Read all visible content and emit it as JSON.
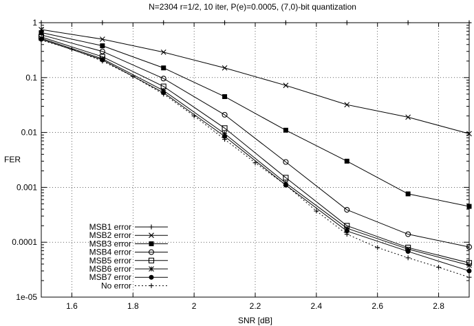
{
  "chart_data": {
    "type": "line",
    "title": "N=2304 r=1/2, 10 iter, P(e)=0.0005, (7,0)-bit quantization",
    "xlabel": "SNR [dB]",
    "ylabel": "FER",
    "xlim": [
      1.5,
      2.9
    ],
    "ylim": [
      1e-05,
      1
    ],
    "yscale": "log",
    "grid": true,
    "legend_position": "bottom-left",
    "xticks": [
      1.6,
      1.8,
      2,
      2.2,
      2.4,
      2.6,
      2.8
    ],
    "xtick_labels": [
      "1.6",
      "1.8",
      "2",
      "2.2",
      "2.4",
      "2.6",
      "2.8"
    ],
    "yticks": [
      1e-05,
      0.0001,
      0.001,
      0.01,
      0.1,
      1
    ],
    "ytick_labels": [
      "1e-05",
      "0.0001",
      "0.001",
      "0.01",
      "0.1",
      "1"
    ],
    "series": [
      {
        "name": "MSB1 error",
        "marker": "plus",
        "dashed": false,
        "x": [
          1.5,
          1.7,
          1.9,
          2.1,
          2.3,
          2.5,
          2.7,
          2.9
        ],
        "y": [
          1,
          1,
          1,
          1,
          1,
          1,
          1,
          1
        ]
      },
      {
        "name": "MSB2 error",
        "marker": "cross",
        "dashed": false,
        "x": [
          1.5,
          1.7,
          1.9,
          2.1,
          2.3,
          2.5,
          2.7,
          2.9
        ],
        "y": [
          0.75,
          0.5,
          0.29,
          0.15,
          0.072,
          0.032,
          0.019,
          0.0095
        ]
      },
      {
        "name": "MSB3 error",
        "marker": "filled-square",
        "dashed": false,
        "x": [
          1.5,
          1.7,
          1.9,
          2.1,
          2.3,
          2.5,
          2.7,
          2.9
        ],
        "y": [
          0.66,
          0.38,
          0.15,
          0.045,
          0.011,
          0.003,
          0.00076,
          0.00045
        ]
      },
      {
        "name": "MSB4 error",
        "marker": "open-circle",
        "dashed": false,
        "x": [
          1.5,
          1.7,
          1.9,
          2.1,
          2.3,
          2.5,
          2.7,
          2.9
        ],
        "y": [
          0.6,
          0.3,
          0.096,
          0.021,
          0.0029,
          0.00039,
          0.00014,
          8.2e-05
        ]
      },
      {
        "name": "MSB5 error",
        "marker": "open-square",
        "dashed": false,
        "x": [
          1.5,
          1.7,
          1.9,
          2.1,
          2.3,
          2.5,
          2.7,
          2.9
        ],
        "y": [
          0.55,
          0.24,
          0.069,
          0.012,
          0.0015,
          0.0002,
          8e-05,
          4.2e-05
        ]
      },
      {
        "name": "MSB6 error",
        "marker": "star",
        "dashed": false,
        "x": [
          1.5,
          1.7,
          1.9,
          2.1,
          2.3,
          2.5,
          2.7,
          2.9
        ],
        "y": [
          0.52,
          0.22,
          0.058,
          0.0095,
          0.0012,
          0.00018,
          7.5e-05,
          3.8e-05
        ]
      },
      {
        "name": "MSB7 error",
        "marker": "filled-circle",
        "dashed": false,
        "x": [
          1.5,
          1.7,
          1.9,
          2.1,
          2.3,
          2.5,
          2.7,
          2.9
        ],
        "y": [
          0.5,
          0.21,
          0.053,
          0.0085,
          0.0011,
          0.00016,
          6.8e-05,
          3e-05
        ]
      },
      {
        "name": "No error",
        "marker": "plus",
        "dashed": true,
        "x": [
          1.5,
          1.6,
          1.7,
          1.8,
          1.9,
          2.0,
          2.1,
          2.2,
          2.3,
          2.4,
          2.5,
          2.6,
          2.7,
          2.8,
          2.9
        ],
        "y": [
          0.48,
          0.33,
          0.2,
          0.105,
          0.05,
          0.02,
          0.0075,
          0.0028,
          0.0011,
          0.00037,
          0.00014,
          8e-05,
          5.2e-05,
          3.5e-05,
          2.3e-05
        ]
      }
    ]
  }
}
